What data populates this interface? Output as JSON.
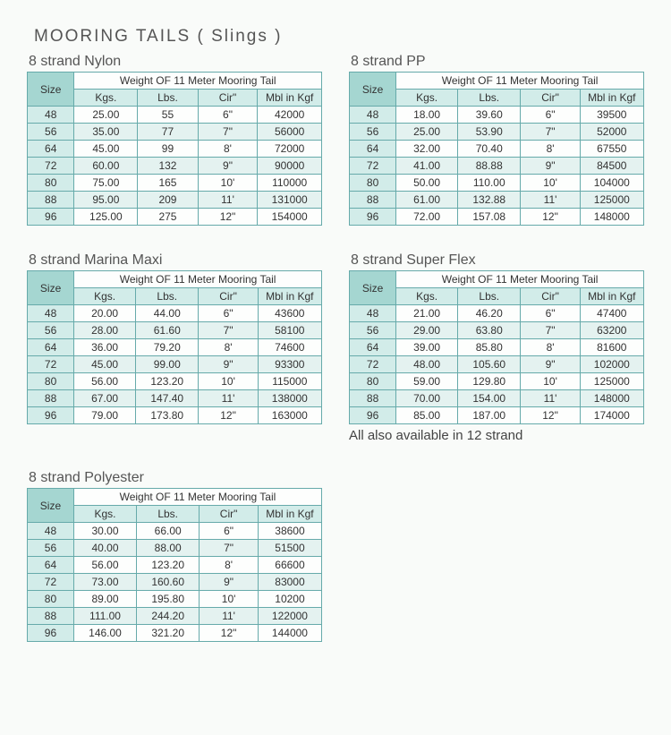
{
  "page_title": "MOORING  TAILS   ( Slings )",
  "spanner_label": "Weight OF 11 Meter Mooring Tail",
  "size_label": "Size",
  "sub_headers": [
    "Kgs.",
    "Lbs.",
    "Cir\"",
    "Mbl in Kgf"
  ],
  "footnote": "All also available in 12 strand",
  "colors": {
    "border": "#6aa",
    "size_header_bg": "#a5d6d1",
    "sub_header_bg": "#d2ece9",
    "row_alt_bg": "#e4f2f0",
    "page_bg": "#f9fbf9"
  },
  "tables": [
    {
      "title": "8 strand Nylon",
      "rows": [
        [
          "48",
          "25.00",
          "55",
          "6\"",
          "42000"
        ],
        [
          "56",
          "35.00",
          "77",
          "7\"",
          "56000"
        ],
        [
          "64",
          "45.00",
          "99",
          "8'",
          "72000"
        ],
        [
          "72",
          "60.00",
          "132",
          "9\"",
          "90000"
        ],
        [
          "80",
          "75.00",
          "165",
          "10'",
          "110000"
        ],
        [
          "88",
          "95.00",
          "209",
          "11'",
          "131000"
        ],
        [
          "96",
          "125.00",
          "275",
          "12\"",
          "154000"
        ]
      ]
    },
    {
      "title": "8 strand PP",
      "rows": [
        [
          "48",
          "18.00",
          "39.60",
          "6\"",
          "39500"
        ],
        [
          "56",
          "25.00",
          "53.90",
          "7\"",
          "52000"
        ],
        [
          "64",
          "32.00",
          "70.40",
          "8'",
          "67550"
        ],
        [
          "72",
          "41.00",
          "88.88",
          "9\"",
          "84500"
        ],
        [
          "80",
          "50.00",
          "110.00",
          "10'",
          "104000"
        ],
        [
          "88",
          "61.00",
          "132.88",
          "11'",
          "125000"
        ],
        [
          "96",
          "72.00",
          "157.08",
          "12\"",
          "148000"
        ]
      ]
    },
    {
      "title": "8 strand Marina Maxi",
      "rows": [
        [
          "48",
          "20.00",
          "44.00",
          "6\"",
          "43600"
        ],
        [
          "56",
          "28.00",
          "61.60",
          "7\"",
          "58100"
        ],
        [
          "64",
          "36.00",
          "79.20",
          "8'",
          "74600"
        ],
        [
          "72",
          "45.00",
          "99.00",
          "9\"",
          "93300"
        ],
        [
          "80",
          "56.00",
          "123.20",
          "10'",
          "115000"
        ],
        [
          "88",
          "67.00",
          "147.40",
          "11'",
          "138000"
        ],
        [
          "96",
          "79.00",
          "173.80",
          "12\"",
          "163000"
        ]
      ]
    },
    {
      "title": "8 strand Super Flex",
      "footnote": true,
      "rows": [
        [
          "48",
          "21.00",
          "46.20",
          "6\"",
          "47400"
        ],
        [
          "56",
          "29.00",
          "63.80",
          "7\"",
          "63200"
        ],
        [
          "64",
          "39.00",
          "85.80",
          "8'",
          "81600"
        ],
        [
          "72",
          "48.00",
          "105.60",
          "9\"",
          "102000"
        ],
        [
          "80",
          "59.00",
          "129.80",
          "10'",
          "125000"
        ],
        [
          "88",
          "70.00",
          "154.00",
          "11'",
          "148000"
        ],
        [
          "96",
          "85.00",
          "187.00",
          "12\"",
          "174000"
        ]
      ]
    },
    {
      "title": "8 strand Polyester",
      "rows": [
        [
          "48",
          "30.00",
          "66.00",
          "6\"",
          "38600"
        ],
        [
          "56",
          "40.00",
          "88.00",
          "7\"",
          "51500"
        ],
        [
          "64",
          "56.00",
          "123.20",
          "8'",
          "66600"
        ],
        [
          "72",
          "73.00",
          "160.60",
          "9\"",
          "83000"
        ],
        [
          "80",
          "89.00",
          "195.80",
          "10'",
          "10200"
        ],
        [
          "88",
          "111.00",
          "244.20",
          "11'",
          "122000"
        ],
        [
          "96",
          "146.00",
          "321.20",
          "12\"",
          "144000"
        ]
      ]
    }
  ]
}
